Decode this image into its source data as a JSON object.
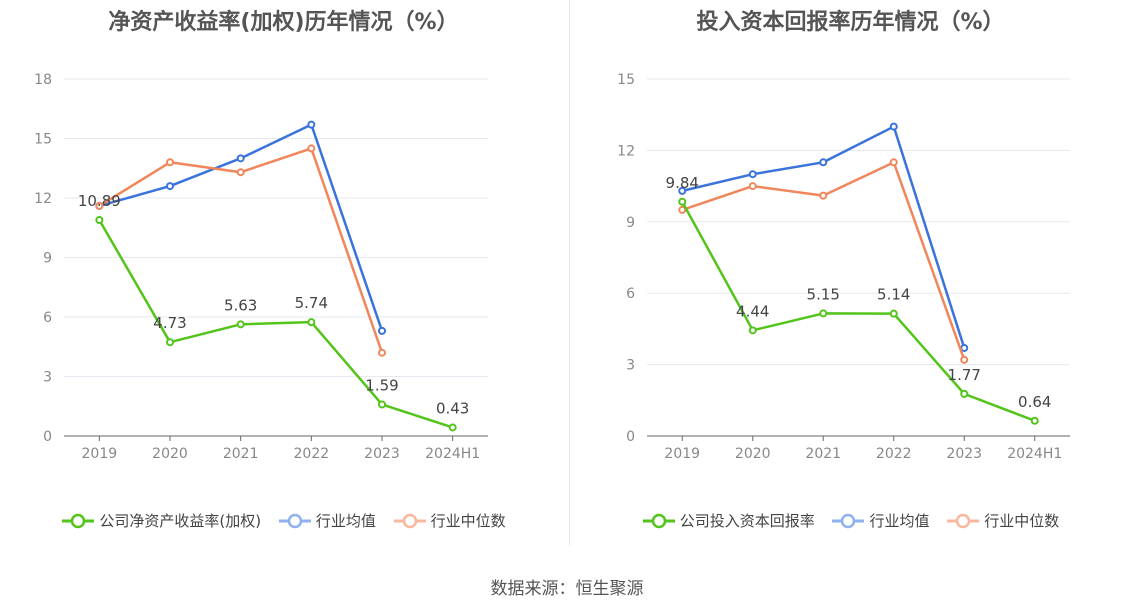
{
  "source_text": "数据来源：恒生聚源",
  "colors": {
    "company": "#52c41a",
    "avg": "#3a73dc",
    "median": "#f0865a",
    "avg_legend": "#8fb1ef",
    "median_legend": "#f7b89e"
  },
  "chart_data": [
    {
      "type": "line",
      "title": "净资产收益率(加权)历年情况（%）",
      "categories": [
        "2019",
        "2020",
        "2021",
        "2022",
        "2023",
        "2024H1"
      ],
      "ylim": [
        0,
        18
      ],
      "yticks": [
        "0",
        "3",
        "6",
        "9",
        "12",
        "15",
        "18"
      ],
      "grid": true,
      "legend_position": "bottom",
      "series": [
        {
          "name": "公司净资产收益率(加权)",
          "values": [
            10.89,
            4.73,
            5.63,
            5.74,
            1.59,
            0.43
          ],
          "labels": [
            "10.89",
            "4.73",
            "5.63",
            "5.74",
            "1.59",
            "0.43"
          ]
        },
        {
          "name": "行业均值",
          "values": [
            11.6,
            12.6,
            14.0,
            15.7,
            5.3,
            null
          ]
        },
        {
          "name": "行业中位数",
          "values": [
            11.6,
            13.8,
            13.3,
            14.5,
            4.2,
            null
          ]
        }
      ]
    },
    {
      "type": "line",
      "title": "投入资本回报率历年情况（%）",
      "categories": [
        "2019",
        "2020",
        "2021",
        "2022",
        "2023",
        "2024H1"
      ],
      "ylim": [
        0,
        15
      ],
      "yticks": [
        "0",
        "3",
        "6",
        "9",
        "12",
        "15"
      ],
      "grid": true,
      "legend_position": "bottom",
      "series": [
        {
          "name": "公司投入资本回报率",
          "values": [
            9.84,
            4.44,
            5.15,
            5.14,
            1.77,
            0.64
          ],
          "labels": [
            "9.84",
            "4.44",
            "5.15",
            "5.14",
            "1.77",
            "0.64"
          ]
        },
        {
          "name": "行业均值",
          "values": [
            10.3,
            11.0,
            11.5,
            13.0,
            3.7,
            null
          ]
        },
        {
          "name": "行业中位数",
          "values": [
            9.5,
            10.5,
            10.1,
            11.5,
            3.2,
            null
          ]
        }
      ]
    }
  ]
}
